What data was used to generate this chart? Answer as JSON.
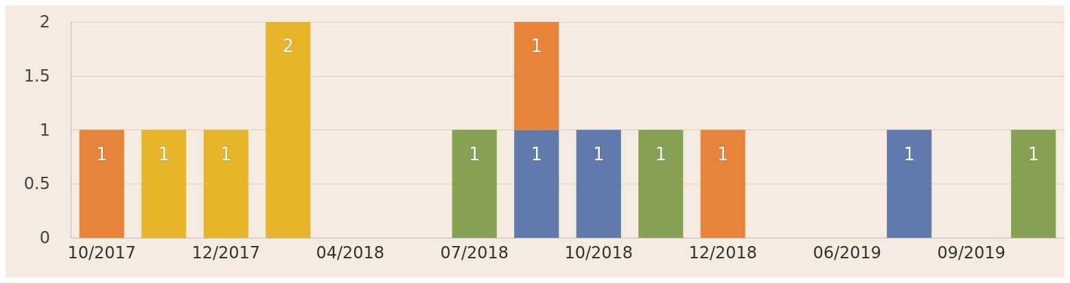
{
  "chart_data": {
    "type": "bar",
    "stacked": true,
    "data_labels": true,
    "grid": "y",
    "categories": [
      "10/2017",
      null,
      "12/2017",
      null,
      "04/2018",
      null,
      "07/2018",
      null,
      "10/2018",
      null,
      "12/2018",
      null,
      "06/2019",
      null,
      "09/2019",
      null
    ],
    "ylim": [
      0,
      2
    ],
    "yticks": [
      0,
      0.5,
      1,
      1.5,
      2
    ],
    "series": [
      {
        "color": "#5f7aab",
        "values": [
          null,
          null,
          null,
          null,
          null,
          null,
          null,
          1,
          1,
          null,
          null,
          null,
          null,
          1,
          null,
          null
        ]
      },
      {
        "color": "#86a152",
        "values": [
          null,
          null,
          null,
          null,
          null,
          null,
          1,
          null,
          null,
          1,
          null,
          null,
          null,
          null,
          null,
          1
        ]
      },
      {
        "color": "#e6b52a",
        "values": [
          null,
          1,
          1,
          2,
          null,
          null,
          null,
          null,
          null,
          null,
          null,
          null,
          null,
          null,
          null,
          null
        ]
      },
      {
        "color": "#e8843a",
        "values": [
          1,
          null,
          null,
          null,
          null,
          null,
          null,
          1,
          null,
          null,
          1,
          null,
          null,
          null,
          null,
          null
        ]
      }
    ]
  }
}
